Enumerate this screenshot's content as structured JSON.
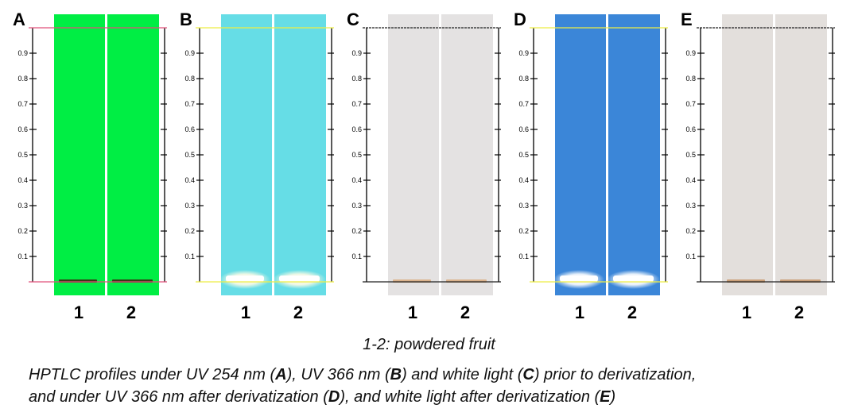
{
  "panels": [
    {
      "letter": "A",
      "plate_color": "#00ee44",
      "band_color": "#3a2a10",
      "band_type": "dark",
      "line_color": "#e0507a"
    },
    {
      "letter": "B",
      "plate_color": "#66dde6",
      "band_color": "#fffbe6",
      "band_type": "glow",
      "line_color": "#eeee44"
    },
    {
      "letter": "C",
      "plate_color": "#e4e2e2",
      "band_color": "#d8a878",
      "band_type": "faint",
      "line_color": "#222222"
    },
    {
      "letter": "D",
      "plate_color": "#3b86d8",
      "band_color": "#ffffff",
      "band_type": "glow",
      "line_color": "#eeee44"
    },
    {
      "letter": "E",
      "plate_color": "#e3dfdc",
      "band_color": "#c49060",
      "band_type": "faint",
      "line_color": "#222222"
    }
  ],
  "lanes": [
    "1",
    "2"
  ],
  "rf_ticks": [
    "0.1",
    "0.2",
    "0.3",
    "0.4",
    "0.5",
    "0.6",
    "0.7",
    "0.8",
    "0.9"
  ],
  "caption": "1-2: powdered fruit",
  "description": {
    "line1_parts": [
      "HPTLC profiles under UV 254 nm (",
      "A",
      "), UV 366 nm (",
      "B",
      ") and white light (",
      "C",
      ") prior to derivatization,"
    ],
    "line2_parts": [
      "and under UV 366 nm after derivatization (",
      "D",
      "), and white light after derivatization (",
      "E",
      ")"
    ]
  }
}
